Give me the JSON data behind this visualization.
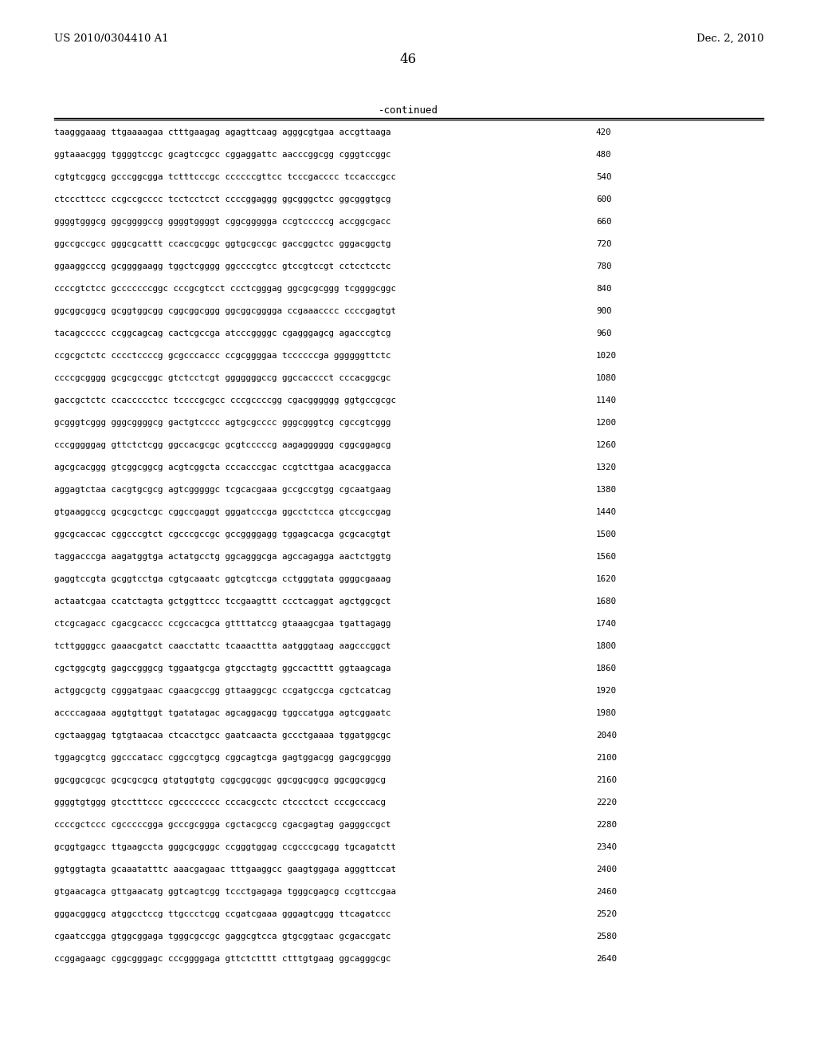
{
  "header_left": "US 2010/0304410 A1",
  "header_right": "Dec. 2, 2010",
  "page_number": "46",
  "continued_label": "-continued",
  "background_color": "#ffffff",
  "text_color": "#000000",
  "sequence_lines": [
    {
      "seq": "taagggaaag ttgaaaagaa ctttgaagag agagttcaag agggcgtgaa accgttaaga",
      "num": "420"
    },
    {
      "seq": "ggtaaacggg tggggtccgc gcagtccgcc cggaggattc aacccggcgg cgggtccggc",
      "num": "480"
    },
    {
      "seq": "cgtgtcggcg gcccggcgga tctttcccgc ccccccgttcc tcccgacccc tccacccgcc",
      "num": "540"
    },
    {
      "seq": "ctcccttccc ccgccgcccc tcctcctcct ccccggaggg ggcgggctcc ggcgggtgcg",
      "num": "600"
    },
    {
      "seq": "ggggtgggcg ggcggggccg ggggtggggt cggcggggga ccgtcccccg accggcgacc",
      "num": "660"
    },
    {
      "seq": "ggccgccgcc gggcgcattt ccaccgcggc ggtgcgccgc gaccggctcc gggacggctg",
      "num": "720"
    },
    {
      "seq": "ggaaggcccg gcggggaagg tggctcgggg ggccccgtcc gtccgtccgt cctcctcctc",
      "num": "780"
    },
    {
      "seq": "ccccgtctcc gcccccccggc cccgcgtcct ccctcgggag ggcgcgcggg tcggggcggc",
      "num": "840"
    },
    {
      "seq": "ggcggcggcg gcggtggcgg cggcggcggg ggcggcgggga ccgaaacccc ccccgagtgt",
      "num": "900"
    },
    {
      "seq": "tacagccccc ccggcagcag cactcgccga atcccggggc cgagggagcg agacccgtcg",
      "num": "960"
    },
    {
      "seq": "ccgcgctctc cccctccccg gcgcccaccc ccgcggggaa tccccccga ggggggttctc",
      "num": "1020"
    },
    {
      "seq": "ccccgcgggg gcgcgccggc gtctcctcgt gggggggccg ggccacccct cccacggcgc",
      "num": "1080"
    },
    {
      "seq": "gaccgctctc ccaccccctcc tccccgcgcc cccgccccgg cgacgggggg ggtgccgcgc",
      "num": "1140"
    },
    {
      "seq": "gcgggtcggg gggcggggcg gactgtcccc agtgcgcccc gggcgggtcg cgccgtcggg",
      "num": "1200"
    },
    {
      "seq": "cccgggggag gttctctcgg ggccacgcgc gcgtcccccg aagagggggg cggcggagcg",
      "num": "1260"
    },
    {
      "seq": "agcgcacggg gtcggcggcg acgtcggcta cccacccgac ccgtcttgaa acacggacca",
      "num": "1320"
    },
    {
      "seq": "aggagtctaa cacgtgcgcg agtcgggggc tcgcacgaaa gccgccgtgg cgcaatgaag",
      "num": "1380"
    },
    {
      "seq": "gtgaaggccg gcgcgctcgc cggccgaggt gggatcccga ggcctctcca gtccgccgag",
      "num": "1440"
    },
    {
      "seq": "ggcgcaccac cggcccgtct cgcccgccgc gccggggagg tggagcacga gcgcacgtgt",
      "num": "1500"
    },
    {
      "seq": "taggacccga aagatggtga actatgcctg ggcagggcga agccagagga aactctggtg",
      "num": "1560"
    },
    {
      "seq": "gaggtccgta gcggtcctga cgtgcaaatc ggtcgtccga cctgggtata ggggcgaaag",
      "num": "1620"
    },
    {
      "seq": "actaatcgaa ccatctagta gctggttccc tccgaagttt ccctcaggat agctggcgct",
      "num": "1680"
    },
    {
      "seq": "ctcgcagacc cgacgcaccc ccgccacgca gttttatccg gtaaagcgaa tgattagagg",
      "num": "1740"
    },
    {
      "seq": "tcttggggcc gaaacgatct caacctattc tcaaacttta aatgggtaag aagcccggct",
      "num": "1800"
    },
    {
      "seq": "cgctggcgtg gagccgggcg tggaatgcga gtgcctagtg ggccactttt ggtaagcaga",
      "num": "1860"
    },
    {
      "seq": "actggcgctg cgggatgaac cgaacgccgg gttaaggcgc ccgatgccga cgctcatcag",
      "num": "1920"
    },
    {
      "seq": "accccagaaa aggtgttggt tgatatagac agcaggacgg tggccatgga agtcggaatc",
      "num": "1980"
    },
    {
      "seq": "cgctaaggag tgtgtaacaa ctcacctgcc gaatcaacta gccctgaaaa tggatggcgc",
      "num": "2040"
    },
    {
      "seq": "tggagcgtcg ggcccatacc cggccgtgcg cggcagtcga gagtggacgg gagcggcggg",
      "num": "2100"
    },
    {
      "seq": "ggcggcgcgc gcgcgcgcg gtgtggtgtg cggcggcggc ggcggcggcg ggcggcggcg",
      "num": "2160"
    },
    {
      "seq": "ggggtgtggg gtcctttccc cgcccccccc cccacgcctc ctccctcct cccgcccacg",
      "num": "2220"
    },
    {
      "seq": "ccccgctccc cgcccccgga gcccgcggga cgctacgccg cgacgagtag gagggccgct",
      "num": "2280"
    },
    {
      "seq": "gcggtgagcc ttgaagccta gggcgcgggc ccgggtggag ccgcccgcagg tgcagatctt",
      "num": "2340"
    },
    {
      "seq": "ggtggtagta gcaaatatttc aaacgagaac tttgaaggcc gaagtggaga agggttccat",
      "num": "2400"
    },
    {
      "seq": "gtgaacagca gttgaacatg ggtcagtcgg tccctgagaga tgggcgagcg ccgttccgaa",
      "num": "2460"
    },
    {
      "seq": "gggacgggcg atggcctccg ttgccctcgg ccgatcgaaa gggagtcggg ttcagatccc",
      "num": "2520"
    },
    {
      "seq": "cgaatccgga gtggcggaga tgggcgccgc gaggcgtcca gtgcggtaac gcgaccgatc",
      "num": "2580"
    },
    {
      "seq": "ccggagaagc cggcgggagc cccggggaga gttctctttt ctttgtgaag ggcagggcgc",
      "num": "2640"
    }
  ]
}
